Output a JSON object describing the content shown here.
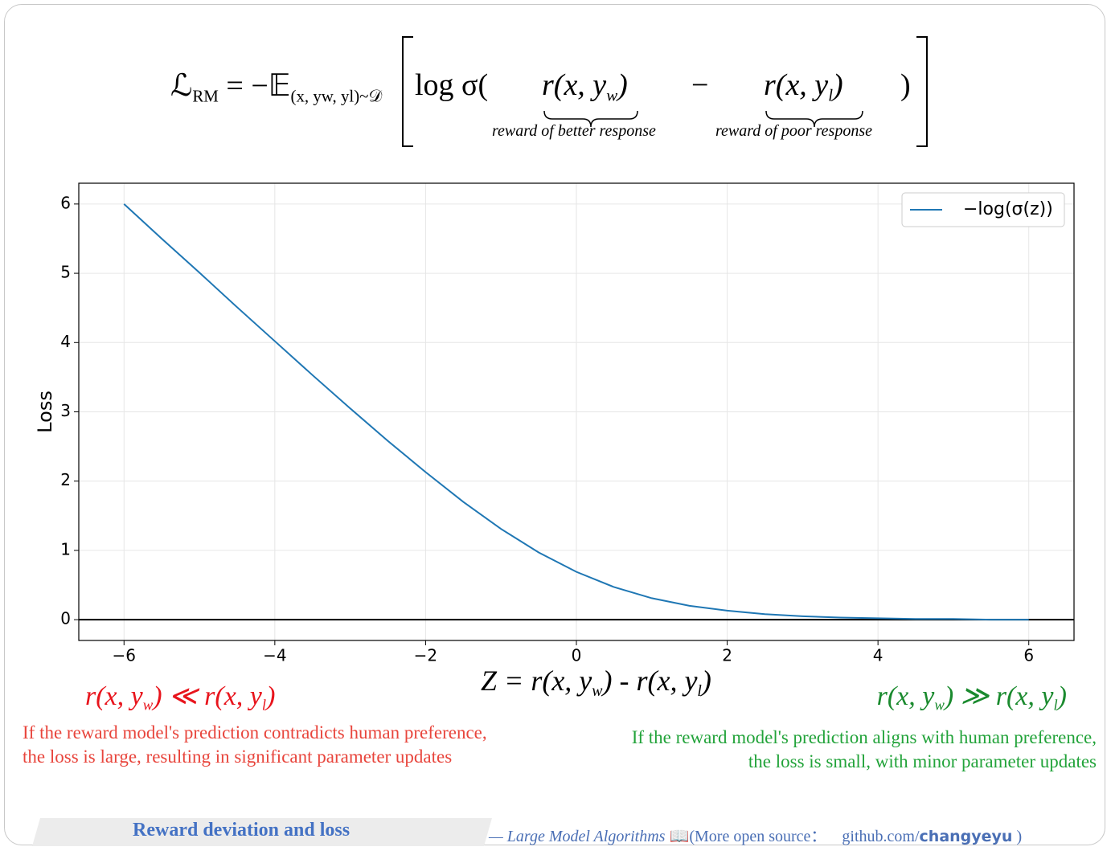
{
  "formula": {
    "lhs": [
      {
        "text": "ℒ"
      },
      {
        "sub": "RM"
      },
      {
        "text": " = −𝔼"
      },
      {
        "sub": "(x, yw, yl)~𝒟"
      }
    ],
    "open": "log σ(",
    "better": [
      {
        "text": "r(x, y"
      },
      {
        "sub": "w"
      },
      {
        "text": ")"
      }
    ],
    "better_label": "reward of better response",
    "minus": "−",
    "poor": [
      {
        "text": "r(x, y"
      },
      {
        "sub": "l"
      },
      {
        "text": ")"
      }
    ],
    "poor_label": "reward of poor response",
    "close": ")"
  },
  "chart_data": {
    "type": "line",
    "x_label": [
      {
        "text": "Z = r(x, y"
      },
      {
        "sub": "w"
      },
      {
        "text": ") - r(x, y"
      },
      {
        "sub": "l"
      },
      {
        "text": ")"
      }
    ],
    "y_label": "Loss",
    "x": [
      -6,
      -5.5,
      -5,
      -4.5,
      -4,
      -3.5,
      -3,
      -2.5,
      -2,
      -1.5,
      -1,
      -0.5,
      0,
      0.5,
      1,
      1.5,
      2,
      2.5,
      3,
      3.5,
      4,
      4.5,
      5,
      5.5,
      6
    ],
    "series": [
      {
        "name": "−log(σ(z))",
        "color": "#1f77b4",
        "values": [
          6.0,
          5.5,
          5.01,
          4.51,
          4.02,
          3.53,
          3.05,
          2.58,
          2.13,
          1.7,
          1.31,
          0.97,
          0.69,
          0.47,
          0.31,
          0.2,
          0.13,
          0.08,
          0.05,
          0.03,
          0.02,
          0.01,
          0.01,
          0.0,
          0.0
        ]
      }
    ],
    "xlim": [
      -6.6,
      6.6
    ],
    "ylim": [
      -0.3,
      6.3
    ],
    "xticks": [
      {
        "value": -6,
        "label": "−6"
      },
      {
        "value": -4,
        "label": "−4"
      },
      {
        "value": -2,
        "label": "−2"
      },
      0,
      2,
      4,
      6
    ],
    "yticks": [
      0,
      1,
      2,
      3,
      4,
      5,
      6
    ],
    "hline": 0,
    "grid": true,
    "legend": "upper right"
  },
  "notes": {
    "left_formula": [
      {
        "text": "r(x, y"
      },
      {
        "sub": "w"
      },
      {
        "text": ") ≪ r(x, y"
      },
      {
        "sub": "l"
      },
      {
        "text": ")"
      }
    ],
    "left_text": [
      "If the reward model's prediction contradicts human preference,",
      "the loss is large, resulting in significant parameter updates"
    ],
    "right_formula": [
      {
        "text": "r(x, y"
      },
      {
        "sub": "w"
      },
      {
        "text": ") ≫ r(x, y"
      },
      {
        "sub": "l"
      },
      {
        "text": ")"
      }
    ],
    "right_text": [
      "If the reward model's prediction aligns with human preference,",
      "the loss is small, with minor parameter updates"
    ]
  },
  "footer": {
    "title": "Reward deviation and loss",
    "source": "— Large Model Algorithms",
    "icon": "📖",
    "more": "(More open source：",
    "site": "github.com/",
    "user": "changyeyu",
    "end": ")"
  }
}
